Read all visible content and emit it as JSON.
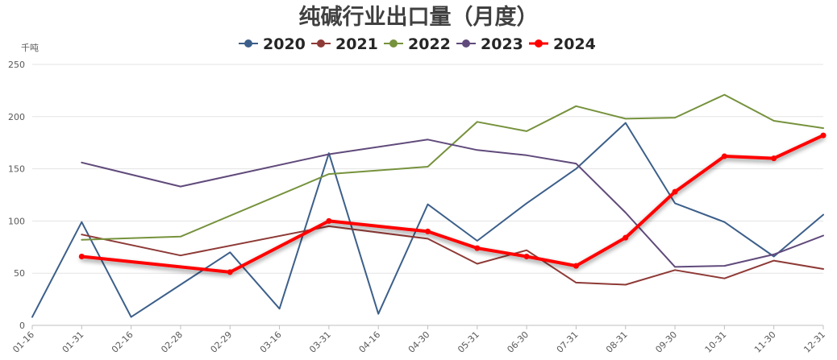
{
  "chart_data": {
    "type": "line",
    "title": "纯碱行业出口量（月度）",
    "unit": "千吨",
    "ylim": [
      0,
      250
    ],
    "yticks": [
      "0",
      "50",
      "100",
      "150",
      "200",
      "250"
    ],
    "categories": [
      "01-16",
      "01-31",
      "02-16",
      "02-28",
      "02-29",
      "03-16",
      "03-31",
      "04-16",
      "04-30",
      "05-31",
      "06-30",
      "07-31",
      "08-31",
      "09-30",
      "10-31",
      "11-30",
      "12-31"
    ],
    "legend_position": "top-center",
    "grid": true,
    "series": [
      {
        "name": "2020",
        "color": "#3c5f8a",
        "width": 2,
        "values": [
          8,
          99,
          8,
          null,
          70,
          16,
          165,
          11,
          116,
          81,
          117,
          150,
          194,
          117,
          99,
          66,
          106
        ]
      },
      {
        "name": "2021",
        "color": "#8e3a36",
        "width": 2,
        "values": [
          null,
          87,
          null,
          67,
          null,
          null,
          95,
          null,
          83,
          59,
          72,
          41,
          39,
          53,
          45,
          62,
          54
        ]
      },
      {
        "name": "2022",
        "color": "#76923c",
        "width": 2,
        "values": [
          null,
          82,
          null,
          85,
          null,
          null,
          145,
          null,
          152,
          195,
          186,
          210,
          198,
          199,
          221,
          196,
          189
        ]
      },
      {
        "name": "2023",
        "color": "#604a7b",
        "width": 2,
        "values": [
          null,
          156,
          null,
          133,
          null,
          null,
          164,
          null,
          178,
          168,
          163,
          155,
          108,
          56,
          57,
          68,
          86
        ]
      },
      {
        "name": "2024",
        "color": "#ff0000",
        "width": 4,
        "markers": true,
        "glow": true,
        "values": [
          null,
          66,
          null,
          null,
          51,
          null,
          100,
          null,
          90,
          74,
          66,
          57,
          84,
          128,
          162,
          160,
          182
        ]
      }
    ]
  }
}
